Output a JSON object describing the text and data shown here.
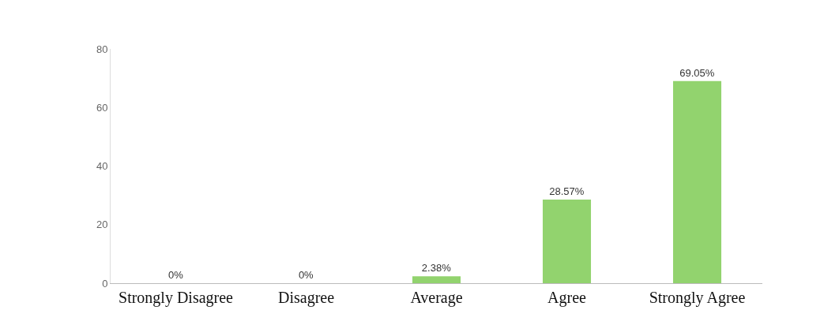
{
  "chart_data": {
    "type": "bar",
    "categories": [
      "Strongly Disagree",
      "Disagree",
      "Average",
      "Agree",
      "Strongly Agree"
    ],
    "values": [
      0,
      0,
      2.38,
      28.57,
      69.05
    ],
    "value_labels": [
      "0%",
      "0%",
      "2.38%",
      "28.57%",
      "69.05%"
    ],
    "color": "#92d36e",
    "ylim": [
      0,
      80
    ],
    "yticks": [
      0,
      20,
      40,
      60,
      80
    ],
    "grid": false,
    "legend": false
  }
}
